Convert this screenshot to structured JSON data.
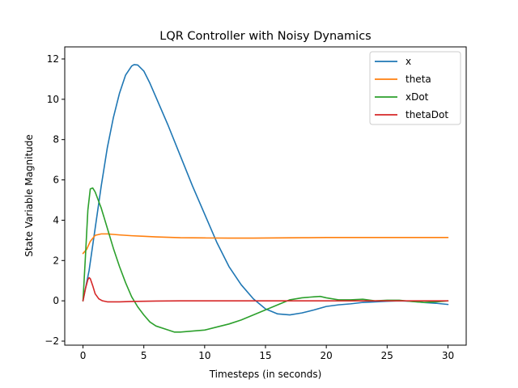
{
  "chart_data": {
    "type": "line",
    "title": "LQR Controller with Noisy Dynamics",
    "xlabel": "Timesteps (in seconds)",
    "ylabel": "State Variable Magnitude",
    "xlim": [
      -1.5,
      31.5
    ],
    "ylim": [
      -2.2,
      12.6
    ],
    "xticks": [
      0,
      5,
      10,
      15,
      20,
      25,
      30
    ],
    "yticks": [
      -2,
      0,
      2,
      4,
      6,
      8,
      10,
      12
    ],
    "grid": false,
    "legend": "top-right",
    "series": [
      {
        "name": "x",
        "color": "#1f77b4",
        "points": [
          [
            0,
            0
          ],
          [
            0.5,
            1.5
          ],
          [
            1,
            3.6
          ],
          [
            1.5,
            5.7
          ],
          [
            2,
            7.6
          ],
          [
            2.5,
            9.1
          ],
          [
            3,
            10.3
          ],
          [
            3.5,
            11.2
          ],
          [
            4,
            11.65
          ],
          [
            4.2,
            11.72
          ],
          [
            4.5,
            11.7
          ],
          [
            5,
            11.4
          ],
          [
            5.5,
            10.8
          ],
          [
            6,
            10.1
          ],
          [
            7,
            8.7
          ],
          [
            8,
            7.2
          ],
          [
            9,
            5.7
          ],
          [
            10,
            4.3
          ],
          [
            11,
            2.9
          ],
          [
            12,
            1.7
          ],
          [
            13,
            0.8
          ],
          [
            14,
            0.1
          ],
          [
            15,
            -0.4
          ],
          [
            16,
            -0.65
          ],
          [
            17,
            -0.7
          ],
          [
            18,
            -0.6
          ],
          [
            19,
            -0.45
          ],
          [
            20,
            -0.28
          ],
          [
            21,
            -0.2
          ],
          [
            22,
            -0.15
          ],
          [
            23,
            -0.08
          ],
          [
            24,
            -0.05
          ],
          [
            25,
            -0.02
          ],
          [
            26,
            0.0
          ],
          [
            27,
            -0.02
          ],
          [
            28,
            -0.08
          ],
          [
            29,
            -0.12
          ],
          [
            30,
            -0.18
          ]
        ]
      },
      {
        "name": "theta",
        "color": "#ff7f0e",
        "points": [
          [
            0,
            2.35
          ],
          [
            0.3,
            2.55
          ],
          [
            0.6,
            2.95
          ],
          [
            1,
            3.25
          ],
          [
            1.5,
            3.32
          ],
          [
            2,
            3.32
          ],
          [
            3,
            3.27
          ],
          [
            4,
            3.23
          ],
          [
            5,
            3.2
          ],
          [
            6,
            3.17
          ],
          [
            7,
            3.15
          ],
          [
            8,
            3.13
          ],
          [
            10,
            3.12
          ],
          [
            12,
            3.11
          ],
          [
            14,
            3.11
          ],
          [
            16,
            3.12
          ],
          [
            18,
            3.13
          ],
          [
            20,
            3.14
          ],
          [
            25,
            3.14
          ],
          [
            30,
            3.14
          ]
        ]
      },
      {
        "name": "xDot",
        "color": "#2ca02c",
        "points": [
          [
            0,
            0
          ],
          [
            0.2,
            2.2
          ],
          [
            0.4,
            4.5
          ],
          [
            0.6,
            5.55
          ],
          [
            0.8,
            5.6
          ],
          [
            1,
            5.4
          ],
          [
            1.5,
            4.6
          ],
          [
            2,
            3.6
          ],
          [
            2.5,
            2.6
          ],
          [
            3,
            1.7
          ],
          [
            3.5,
            0.9
          ],
          [
            4,
            0.2
          ],
          [
            4.5,
            -0.3
          ],
          [
            5,
            -0.7
          ],
          [
            5.5,
            -1.05
          ],
          [
            6,
            -1.25
          ],
          [
            7,
            -1.45
          ],
          [
            7.5,
            -1.55
          ],
          [
            8,
            -1.55
          ],
          [
            9,
            -1.5
          ],
          [
            10,
            -1.45
          ],
          [
            11,
            -1.3
          ],
          [
            12,
            -1.15
          ],
          [
            13,
            -0.95
          ],
          [
            14,
            -0.7
          ],
          [
            15,
            -0.45
          ],
          [
            16,
            -0.2
          ],
          [
            17,
            0.05
          ],
          [
            18,
            0.15
          ],
          [
            19,
            0.2
          ],
          [
            19.5,
            0.22
          ],
          [
            20,
            0.15
          ],
          [
            21,
            0.05
          ],
          [
            22,
            0.05
          ],
          [
            23,
            0.08
          ],
          [
            24,
            0.0
          ],
          [
            25,
            0.03
          ],
          [
            26,
            0.03
          ],
          [
            27,
            -0.03
          ],
          [
            28,
            -0.08
          ],
          [
            29,
            -0.05
          ],
          [
            30,
            0.0
          ]
        ]
      },
      {
        "name": "thetaDot",
        "color": "#d62728",
        "points": [
          [
            0,
            0
          ],
          [
            0.2,
            0.6
          ],
          [
            0.4,
            1.05
          ],
          [
            0.5,
            1.15
          ],
          [
            0.6,
            1.1
          ],
          [
            0.8,
            0.75
          ],
          [
            1,
            0.35
          ],
          [
            1.3,
            0.1
          ],
          [
            1.6,
            0.0
          ],
          [
            2,
            -0.05
          ],
          [
            3,
            -0.05
          ],
          [
            4,
            -0.03
          ],
          [
            5,
            -0.02
          ],
          [
            6,
            -0.01
          ],
          [
            8,
            0
          ],
          [
            10,
            0
          ],
          [
            15,
            0
          ],
          [
            20,
            0
          ],
          [
            25,
            0
          ],
          [
            30,
            0
          ]
        ]
      }
    ]
  }
}
